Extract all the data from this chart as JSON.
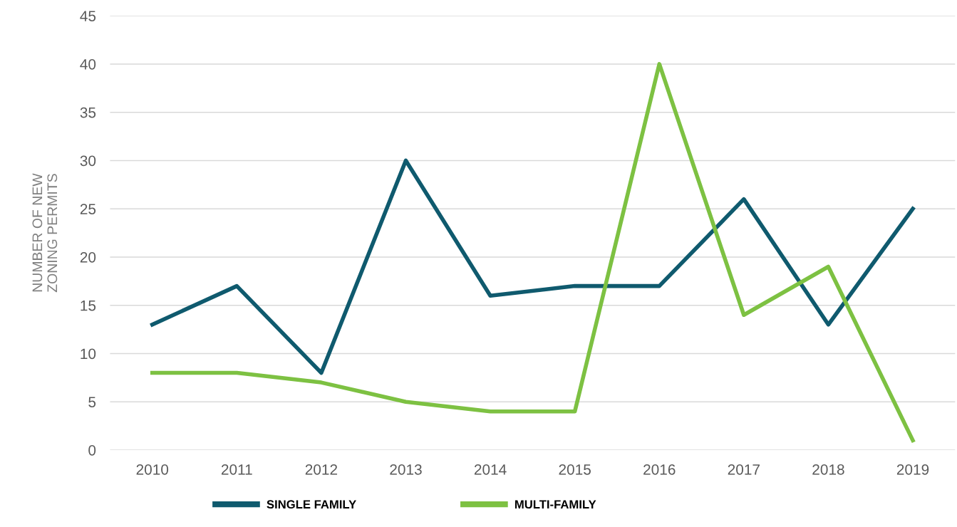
{
  "chart_data": {
    "type": "line",
    "ylabel": "NUMBER OF NEW\nZONING PERMITS",
    "categories": [
      "2010",
      "2011",
      "2012",
      "2013",
      "2014",
      "2015",
      "2016",
      "2017",
      "2018",
      "2019"
    ],
    "series": [
      {
        "name": "SINGLE FAMILY",
        "color": "#0f5a6e",
        "values": [
          13,
          17,
          8,
          30,
          16,
          17,
          17,
          26,
          13,
          25
        ]
      },
      {
        "name": "MULTI-FAMILY",
        "color": "#7dc142",
        "values": [
          8,
          8,
          7,
          5,
          4,
          4,
          40,
          14,
          19,
          1
        ]
      }
    ],
    "ylim": [
      0,
      45
    ],
    "yticks": [
      0,
      5,
      10,
      15,
      20,
      25,
      30,
      35,
      40,
      45
    ],
    "grid": "y",
    "legend": "bottom",
    "marker": "none",
    "line_style": "solid"
  }
}
